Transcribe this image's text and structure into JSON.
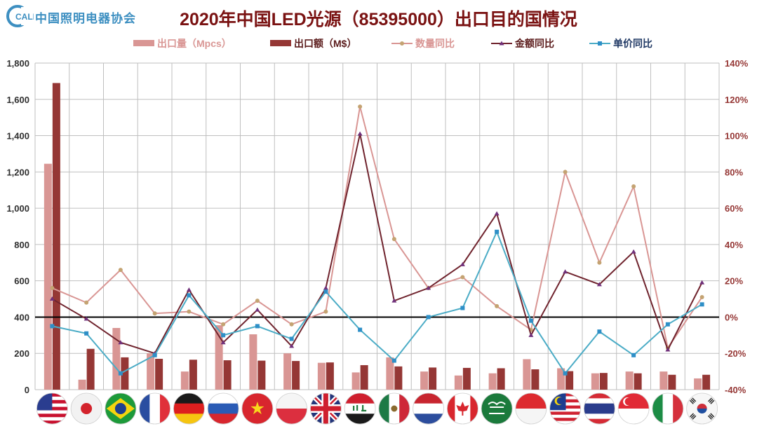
{
  "logo": {
    "mark": "CALI",
    "text": "中国照明电器协会"
  },
  "title": "2020年中国LED光源（85395000）出口目的国情况",
  "legend": [
    {
      "label": "出口量（Mpcs）",
      "kind": "bar",
      "color": "#d99694"
    },
    {
      "label": "出口额（M$）",
      "kind": "bar",
      "color": "#953735"
    },
    {
      "label": "数量同比",
      "kind": "line",
      "color": "#d99694",
      "marker": "#c4a372"
    },
    {
      "label": "金额同比",
      "kind": "line",
      "color": "#70242e",
      "marker": "#70307a"
    },
    {
      "label": "单价同比",
      "kind": "line",
      "color": "#4bacc6",
      "marker": "#2e8fc7"
    }
  ],
  "colors": {
    "axis_left": "#2f2f2f",
    "axis_right": "#953735",
    "grid": "#bfbfbf",
    "zero_line": "#000000"
  },
  "chart_data": {
    "type": "bar",
    "categories": [
      "United States",
      "Japan",
      "Brazil",
      "France",
      "Germany",
      "Russia",
      "Vietnam",
      "Poland",
      "United Kingdom",
      "Iraq",
      "Mexico",
      "Netherlands",
      "Canada",
      "Saudi Arabia",
      "Indonesia",
      "Malaysia",
      "Thailand",
      "Singapore",
      "Italy",
      "South Korea"
    ],
    "flags": [
      "us",
      "jp",
      "br",
      "fr",
      "de",
      "ru",
      "vn",
      "pl",
      "gb",
      "iq",
      "mx",
      "nl",
      "ca",
      "sa",
      "id",
      "my",
      "th",
      "sg",
      "it",
      "kr"
    ],
    "y_left": {
      "min": 0,
      "max": 1800,
      "step": 200,
      "ticks": [
        "0",
        "200",
        "400",
        "600",
        "800",
        "1,000",
        "1,200",
        "1,400",
        "1,600",
        "1,800"
      ]
    },
    "y_right": {
      "min": -40,
      "max": 140,
      "step": 20,
      "ticks": [
        "-40%",
        "-20%",
        "0%",
        "20%",
        "40%",
        "60%",
        "80%",
        "100%",
        "120%",
        "140%"
      ]
    },
    "series": [
      {
        "name": "出口量（Mpcs）",
        "type": "bar",
        "axis": "left",
        "values": [
          1245,
          55,
          340,
          200,
          100,
          355,
          305,
          200,
          148,
          95,
          178,
          100,
          78,
          90,
          168,
          118,
          90,
          100,
          100,
          62
        ]
      },
      {
        "name": "出口额（M$）",
        "type": "bar",
        "axis": "left",
        "values": [
          1690,
          225,
          178,
          170,
          165,
          162,
          160,
          158,
          150,
          135,
          128,
          122,
          120,
          118,
          112,
          102,
          92,
          90,
          82,
          82
        ]
      },
      {
        "name": "数量同比",
        "type": "line",
        "axis": "right",
        "values": [
          16,
          8,
          26,
          2,
          3,
          -4,
          9,
          -4,
          3,
          116,
          43,
          16,
          22,
          6,
          -7,
          80,
          30,
          72,
          -17,
          11
        ]
      },
      {
        "name": "金额同比",
        "type": "line",
        "axis": "right",
        "values": [
          10,
          -1,
          -14,
          -20,
          15,
          -14,
          4,
          -16,
          16,
          101,
          9,
          16,
          29,
          57,
          -10,
          25,
          18,
          36,
          -18,
          19
        ]
      },
      {
        "name": "单价同比",
        "type": "line",
        "axis": "right",
        "values": [
          -5,
          -9,
          -31,
          -21,
          12,
          -10,
          -5,
          -12,
          14,
          -7,
          -24,
          0,
          5,
          47,
          -2,
          -31,
          -8,
          -21,
          -4,
          7
        ]
      }
    ]
  }
}
